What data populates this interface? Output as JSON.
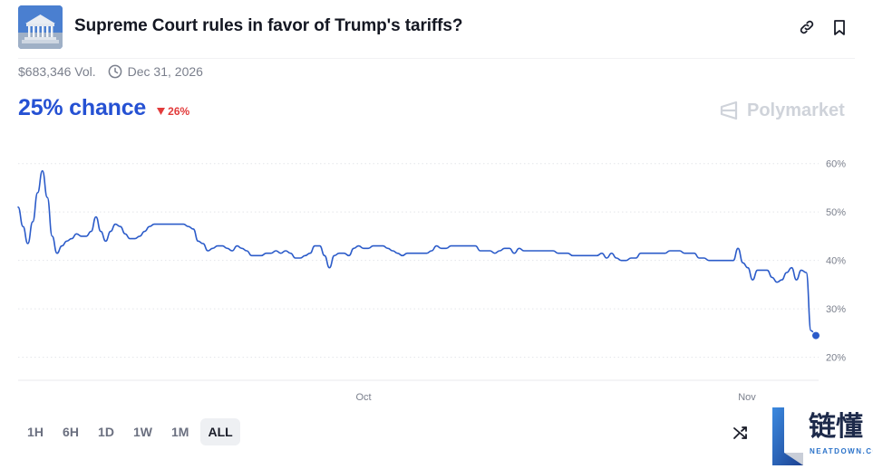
{
  "header": {
    "title": "Supreme Court rules in favor of Trump's tariffs?",
    "thumbnail_icon": "supreme-court-building-image",
    "link_icon": "link-icon",
    "bookmark_icon": "bookmark-icon"
  },
  "meta": {
    "volume": "$683,346 Vol.",
    "end_date": "Dec 31, 2026"
  },
  "summary": {
    "chance": "25% chance",
    "change": "26%",
    "change_direction": "down",
    "change_color": "#e23b3b",
    "accent_color": "#2551d3"
  },
  "brand": {
    "name": "Polymarket",
    "color": "#cfd3da"
  },
  "ranges": {
    "items": [
      "1H",
      "6H",
      "1D",
      "1W",
      "1M",
      "ALL"
    ],
    "selected": "ALL"
  },
  "watermark": {
    "text": "链懂",
    "sub": "NEATDOWN.COM"
  },
  "chart_data": {
    "type": "line",
    "title": "",
    "xlabel": "",
    "ylabel": "",
    "x_ticks": [
      "Oct",
      "Nov"
    ],
    "y_ticks": [
      "60%",
      "50%",
      "40%",
      "30%",
      "20%"
    ],
    "ylim": [
      0.19,
      0.62
    ],
    "grid": true,
    "grid_style": "dotted horizontal",
    "y_axis_side": "right",
    "line_color": "#2b5bc9",
    "series": [
      {
        "values": [
          0.51,
          0.47,
          0.435,
          0.48,
          0.54,
          0.585,
          0.53,
          0.45,
          0.415,
          0.43,
          0.44,
          0.445,
          0.455,
          0.45,
          0.45,
          0.46,
          0.49,
          0.46,
          0.44,
          0.46,
          0.475,
          0.47,
          0.455,
          0.445,
          0.445,
          0.45,
          0.46,
          0.47,
          0.475,
          0.475,
          0.475,
          0.475,
          0.475,
          0.475,
          0.475,
          0.47,
          0.465,
          0.44,
          0.435,
          0.42,
          0.425,
          0.43,
          0.43,
          0.425,
          0.42,
          0.43,
          0.425,
          0.42,
          0.41,
          0.41,
          0.41,
          0.415,
          0.415,
          0.42,
          0.415,
          0.42,
          0.415,
          0.405,
          0.405,
          0.41,
          0.415,
          0.43,
          0.43,
          0.41,
          0.385,
          0.41,
          0.415,
          0.415,
          0.41,
          0.425,
          0.43,
          0.425,
          0.425,
          0.43,
          0.43,
          0.43,
          0.425,
          0.42,
          0.415,
          0.41,
          0.415,
          0.415,
          0.415,
          0.415,
          0.415,
          0.42,
          0.43,
          0.425,
          0.425,
          0.43,
          0.43,
          0.43,
          0.43,
          0.43,
          0.43,
          0.42,
          0.42,
          0.42,
          0.415,
          0.42,
          0.425,
          0.425,
          0.415,
          0.425,
          0.42,
          0.42,
          0.42,
          0.42,
          0.42,
          0.42,
          0.42,
          0.415,
          0.415,
          0.415,
          0.41,
          0.41,
          0.41,
          0.41,
          0.41,
          0.41,
          0.415,
          0.405,
          0.415,
          0.405,
          0.4,
          0.4,
          0.405,
          0.405,
          0.415,
          0.415,
          0.415,
          0.415,
          0.415,
          0.415,
          0.42,
          0.42,
          0.42,
          0.415,
          0.415,
          0.415,
          0.405,
          0.405,
          0.4,
          0.4,
          0.4,
          0.4,
          0.4,
          0.4,
          0.425,
          0.395,
          0.385,
          0.36,
          0.38,
          0.38,
          0.38,
          0.365,
          0.355,
          0.36,
          0.375,
          0.385,
          0.36,
          0.38,
          0.375,
          0.255,
          0.245
        ]
      }
    ]
  }
}
